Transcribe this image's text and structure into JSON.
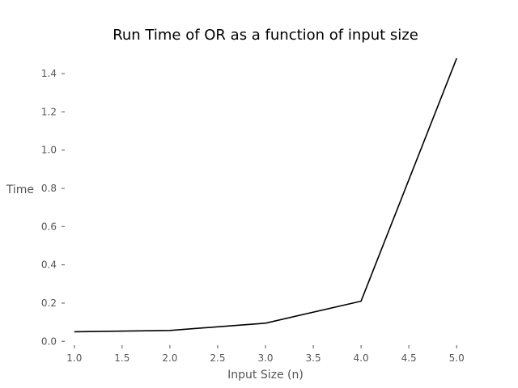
{
  "chart_data": {
    "type": "line",
    "title": "Run Time of OR as a function of input size",
    "xlabel": "Input Size (n)",
    "ylabel": "Time",
    "xlim": [
      0.9,
      5.1
    ],
    "ylim": [
      -0.02,
      1.54
    ],
    "grid": false,
    "x_ticks": [
      1.0,
      1.5,
      2.0,
      2.5,
      3.0,
      3.5,
      4.0,
      4.5,
      5.0
    ],
    "x_tick_labels": [
      "1.0",
      "1.5",
      "2.0",
      "2.5",
      "3.0",
      "3.5",
      "4.0",
      "4.5",
      "5.0"
    ],
    "y_ticks": [
      0.0,
      0.2,
      0.4,
      0.6,
      0.8,
      1.0,
      1.2,
      1.4
    ],
    "y_tick_labels": [
      "0.0",
      "0.2",
      "0.4",
      "0.6",
      "0.8",
      "1.0",
      "1.2",
      "1.4"
    ],
    "series": [
      {
        "x": [
          1,
          2,
          3,
          4,
          5
        ],
        "values": [
          0.05,
          0.057,
          0.095,
          0.21,
          1.48
        ],
        "color": "#000000"
      }
    ]
  }
}
